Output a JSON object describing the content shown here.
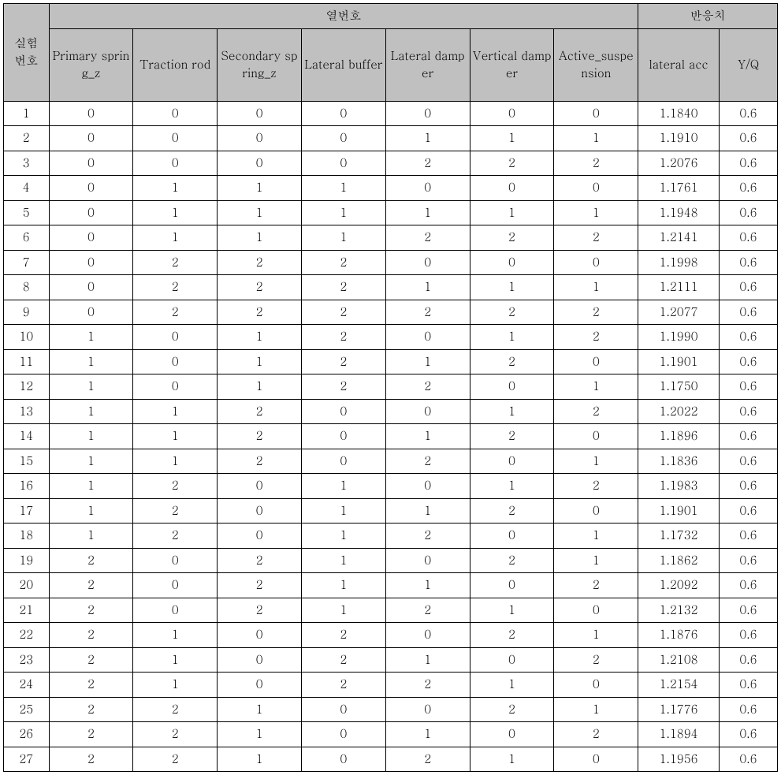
{
  "table": {
    "type": "table",
    "header_bg": "#c0c0c0",
    "body_bg": "#ffffff",
    "border_color": "#000000",
    "group_headers": {
      "experiment_no": "실험\n번호",
      "column_no": "열번호",
      "response": "반응치"
    },
    "columns": [
      "Primary spring_z",
      "Traction rod",
      "Secondary spring_z",
      "Lateral buffer",
      "Lateral damper",
      "Vertical damper",
      "Active_suspension",
      "lateral acc",
      "Y/Q"
    ],
    "rows": [
      [
        "1",
        "0",
        "0",
        "0",
        "0",
        "0",
        "0",
        "0",
        "1.1840",
        "0.6"
      ],
      [
        "2",
        "0",
        "0",
        "0",
        "0",
        "1",
        "1",
        "1",
        "1.1910",
        "0.6"
      ],
      [
        "3",
        "0",
        "0",
        "0",
        "0",
        "2",
        "2",
        "2",
        "1.2076",
        "0.6"
      ],
      [
        "4",
        "0",
        "1",
        "1",
        "1",
        "0",
        "0",
        "0",
        "1.1761",
        "0.6"
      ],
      [
        "5",
        "0",
        "1",
        "1",
        "1",
        "1",
        "1",
        "1",
        "1.1948",
        "0.6"
      ],
      [
        "6",
        "0",
        "1",
        "1",
        "1",
        "2",
        "2",
        "2",
        "1.2141",
        "0.6"
      ],
      [
        "7",
        "0",
        "2",
        "2",
        "2",
        "0",
        "0",
        "0",
        "1.1998",
        "0.6"
      ],
      [
        "8",
        "0",
        "2",
        "2",
        "2",
        "1",
        "1",
        "1",
        "1.2111",
        "0.6"
      ],
      [
        "9",
        "0",
        "2",
        "2",
        "2",
        "2",
        "2",
        "2",
        "1.2077",
        "0.6"
      ],
      [
        "10",
        "1",
        "0",
        "1",
        "2",
        "0",
        "1",
        "2",
        "1.1990",
        "0.6"
      ],
      [
        "11",
        "1",
        "0",
        "1",
        "2",
        "1",
        "2",
        "0",
        "1.1901",
        "0.6"
      ],
      [
        "12",
        "1",
        "0",
        "1",
        "2",
        "2",
        "0",
        "1",
        "1.1750",
        "0.6"
      ],
      [
        "13",
        "1",
        "1",
        "2",
        "0",
        "0",
        "1",
        "2",
        "1.2022",
        "0.6"
      ],
      [
        "14",
        "1",
        "1",
        "2",
        "0",
        "1",
        "2",
        "0",
        "1.1896",
        "0.6"
      ],
      [
        "15",
        "1",
        "1",
        "2",
        "0",
        "2",
        "0",
        "1",
        "1.1836",
        "0.6"
      ],
      [
        "16",
        "1",
        "2",
        "0",
        "1",
        "0",
        "1",
        "2",
        "1.1983",
        "0.6"
      ],
      [
        "17",
        "1",
        "2",
        "0",
        "1",
        "1",
        "2",
        "0",
        "1.1901",
        "0.6"
      ],
      [
        "18",
        "1",
        "2",
        "0",
        "1",
        "2",
        "0",
        "1",
        "1.1732",
        "0.6"
      ],
      [
        "19",
        "2",
        "0",
        "2",
        "1",
        "0",
        "2",
        "1",
        "1.1862",
        "0.6"
      ],
      [
        "20",
        "2",
        "0",
        "2",
        "1",
        "1",
        "0",
        "2",
        "1.2092",
        "0.6"
      ],
      [
        "21",
        "2",
        "0",
        "2",
        "1",
        "2",
        "1",
        "0",
        "1.2132",
        "0.6"
      ],
      [
        "22",
        "2",
        "1",
        "0",
        "2",
        "0",
        "2",
        "1",
        "1.1876",
        "0.6"
      ],
      [
        "23",
        "2",
        "1",
        "0",
        "2",
        "1",
        "0",
        "2",
        "1.2108",
        "0.6"
      ],
      [
        "24",
        "2",
        "1",
        "0",
        "2",
        "2",
        "1",
        "0",
        "1.2154",
        "0.6"
      ],
      [
        "25",
        "2",
        "2",
        "1",
        "0",
        "0",
        "2",
        "1",
        "1.1776",
        "0.6"
      ],
      [
        "26",
        "2",
        "2",
        "1",
        "0",
        "1",
        "0",
        "2",
        "1.1894",
        "0.6"
      ],
      [
        "27",
        "2",
        "2",
        "1",
        "0",
        "2",
        "1",
        "0",
        "1.1956",
        "0.6"
      ]
    ]
  }
}
